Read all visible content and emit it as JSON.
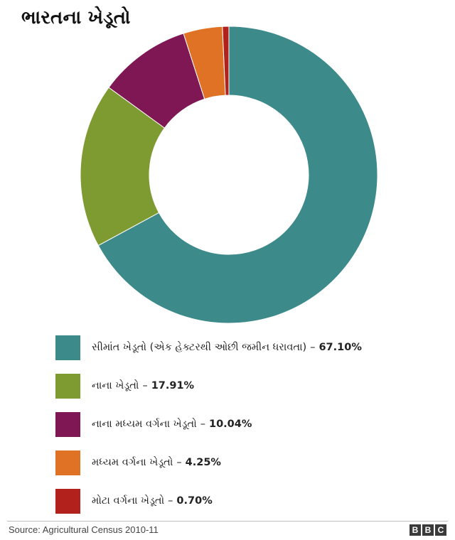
{
  "header": {
    "title": "ભારતના ખેડૂતો"
  },
  "chart_data": {
    "type": "pie",
    "title": "ભારતના ખેડૂતો",
    "categories": [
      "સીમાંત ખેડૂતો (એક હેક્ટરથી ઓછી જમીન ધરાવતા)",
      "નાના ખેડૂતો",
      "નાના મધ્યમ વર્ગના ખેડૂતો",
      "મધ્યમ વર્ગના ખેડૂતો",
      "મોટા વર્ગના ખેડૂતો"
    ],
    "values": [
      67.1,
      17.91,
      10.04,
      4.25,
      0.7
    ],
    "value_labels": [
      "67.10%",
      "17.91%",
      "10.04%",
      "4.25%",
      "0.70%"
    ],
    "colors": [
      "#3c8a8a",
      "#7e9b31",
      "#7e1753",
      "#e07226",
      "#b2211c"
    ],
    "legend_position": "bottom",
    "donut": true
  },
  "legend": {
    "items": [
      {
        "label": "સીમાંત ખેડૂતો (એક હેક્ટરથી ઓછી જમીન ધરાવતા)",
        "separator": "–",
        "value": "67.10%",
        "color": "#3c8a8a"
      },
      {
        "label": "નાના ખેડૂતો",
        "separator": "–",
        "value": "17.91%",
        "color": "#7e9b31"
      },
      {
        "label": "નાના મધ્યમ વર્ગના ખેડૂતો",
        "separator": "–",
        "value": "10.04%",
        "color": "#7e1753"
      },
      {
        "label": "મધ્યમ વર્ગના ખેડૂતો",
        "separator": "–",
        "value": "4.25%",
        "color": "#e07226"
      },
      {
        "label": "મોટા વર્ગના ખેડૂતો",
        "separator": "–",
        "value": "0.70%",
        "color": "#b2211c"
      }
    ]
  },
  "footer": {
    "source": "Source: Agricultural Census 2010-11",
    "logo_letters": [
      "B",
      "B",
      "C"
    ]
  }
}
